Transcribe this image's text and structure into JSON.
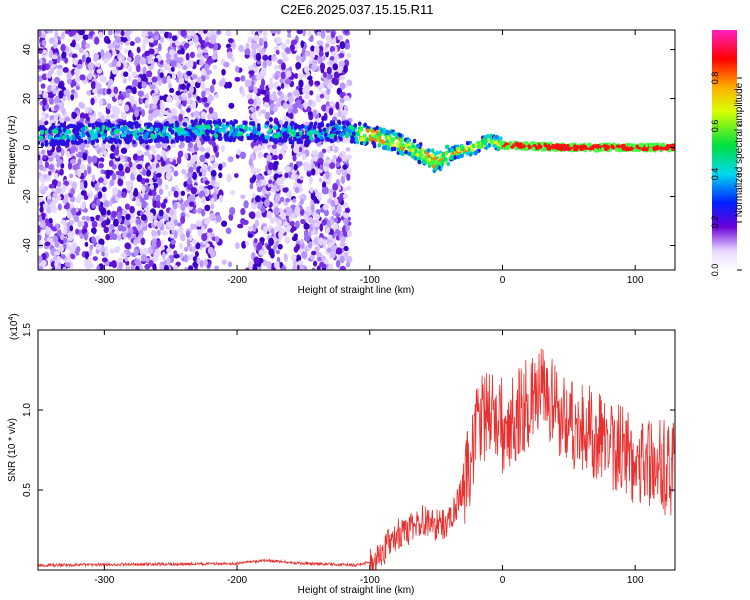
{
  "title": "C2E6.2025.037.15.15.R11",
  "colors": {
    "snr_line": "#e8312f",
    "spectrogram_low": "#6a00d8",
    "spectrogram_mid": "#00e0c0",
    "spectrogram_high": "#e00000"
  },
  "chart_data": [
    {
      "type": "heatmap",
      "name": "spectrogram",
      "xlabel": "Height of straight line (km)",
      "ylabel": "Frequency (Hz)",
      "xlim": [
        -350,
        130
      ],
      "ylim": [
        -50,
        48
      ],
      "x_ticks": [
        -300,
        -200,
        -100,
        0,
        100
      ],
      "y_ticks": [
        -40,
        -20,
        0,
        20,
        40
      ],
      "ridge": {
        "x": [
          -350,
          -300,
          -260,
          -230,
          -200,
          -170,
          -140,
          -120,
          -100,
          -85,
          -70,
          -60,
          -50,
          -40,
          -30,
          -20,
          -10,
          0,
          50,
          130
        ],
        "y": [
          5,
          6,
          6,
          7,
          7,
          6,
          6,
          7,
          5,
          3,
          0,
          -3,
          -6,
          -3,
          -1,
          0,
          3,
          1,
          0,
          0
        ]
      },
      "colorbar": {
        "label": "Normalized spectral amplitude",
        "range": [
          0,
          1
        ],
        "ticks": [
          0.0,
          0.2,
          0.4,
          0.6,
          0.8
        ]
      }
    },
    {
      "type": "line",
      "name": "snr",
      "xlabel": "Height of straight line (km)",
      "ylabel": "SNR (10 * v/v)",
      "scale_label": "(x10",
      "scale_exp": "4",
      "scale_close": ")",
      "xlim": [
        -350,
        130
      ],
      "ylim": [
        0,
        1.5
      ],
      "x_ticks": [
        -300,
        -200,
        -100,
        0,
        100
      ],
      "y_ticks": [
        0.5,
        1.0,
        1.5
      ],
      "envelope": {
        "x": [
          -350,
          -200,
          -180,
          -150,
          -110,
          -100,
          -90,
          -80,
          -70,
          -60,
          -50,
          -40,
          -30,
          -20,
          -10,
          0,
          20,
          30,
          40,
          60,
          80,
          100,
          130
        ],
        "y": [
          0.03,
          0.04,
          0.06,
          0.04,
          0.03,
          0.05,
          0.12,
          0.22,
          0.25,
          0.32,
          0.28,
          0.3,
          0.5,
          0.85,
          1.0,
          0.9,
          1.05,
          1.1,
          1.0,
          0.88,
          0.8,
          0.7,
          0.62
        ]
      }
    }
  ]
}
